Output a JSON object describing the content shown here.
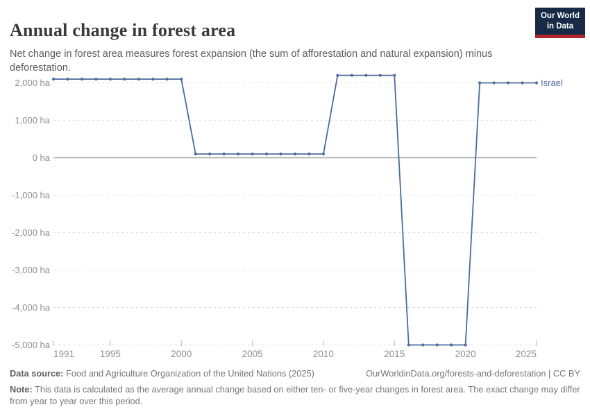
{
  "header": {
    "title": "Annual change in forest area",
    "subtitle": "Net change in forest area measures forest expansion (the sum of afforestation and natural expansion) minus deforestation."
  },
  "logo": {
    "line1": "Our World",
    "line2": "in Data"
  },
  "chart_data": {
    "type": "line",
    "title": "Annual change in forest area",
    "y_unit": "ha",
    "x": [
      1991,
      1992,
      1993,
      1994,
      1995,
      1996,
      1997,
      1998,
      1999,
      2000,
      2001,
      2002,
      2003,
      2004,
      2005,
      2006,
      2007,
      2008,
      2009,
      2010,
      2011,
      2012,
      2013,
      2014,
      2015,
      2016,
      2017,
      2018,
      2019,
      2020,
      2021,
      2022,
      2023,
      2024,
      2025
    ],
    "series": [
      {
        "name": "Israel",
        "color": "#4C6A9C",
        "values": [
          2100,
          2100,
          2100,
          2100,
          2100,
          2100,
          2100,
          2100,
          2100,
          2100,
          100,
          100,
          100,
          100,
          100,
          100,
          100,
          100,
          100,
          100,
          2200,
          2200,
          2200,
          2200,
          2200,
          -5000,
          -5000,
          -5000,
          -5000,
          -5000,
          2000,
          2000,
          2000,
          2000,
          2000
        ]
      }
    ],
    "x_ticks": [
      1991,
      1995,
      2000,
      2005,
      2010,
      2015,
      2020,
      2025
    ],
    "y_ticks": [
      2000,
      1000,
      0,
      -1000,
      -2000,
      -3000,
      -4000,
      -5000
    ],
    "xlim": [
      1991,
      2025
    ],
    "ylim": [
      -5000,
      2270
    ],
    "grid": "horizontal-dashed",
    "zero_line": true,
    "legend_position": "end-of-line",
    "end_label": "Israel"
  },
  "footer": {
    "data_source_label": "Data source:",
    "data_source": "Food and Agriculture Organization of the United Nations (2025)",
    "link_text": "OurWorldinData.org/forests-and-deforestation | CC BY",
    "note_label": "Note:",
    "note_text": "This data is calculated as the average annual change based on either ten- or five-year changes in forest area. The exact change may differ from year to year over this period."
  },
  "colors": {
    "line": "#4C6A9C",
    "axis_text": "#8e8e8e",
    "grid": "#dcdcdc",
    "zero_line": "#a3a3a3",
    "tick": "#b8b8b8",
    "logo_bg": "#172b46",
    "logo_accent": "#b0262c"
  }
}
